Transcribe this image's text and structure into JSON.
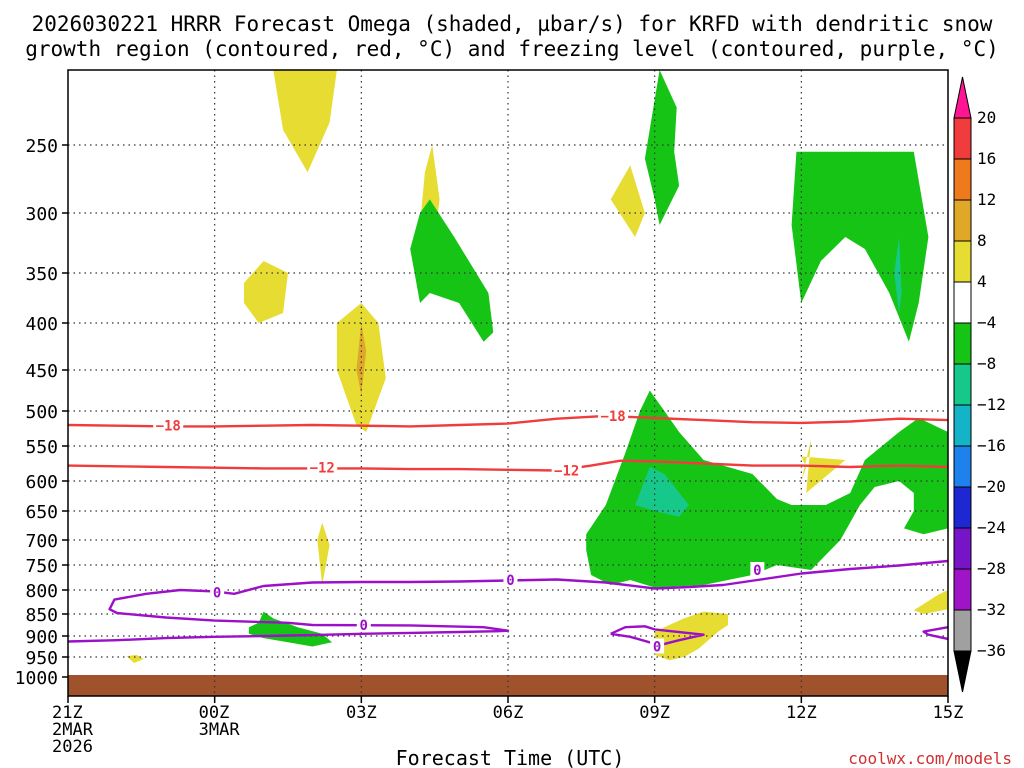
{
  "chart_data": {
    "type": "heatmap",
    "title_line1": "2026030221 HRRR Forecast Omega (shaded, µbar/s) for KRFD with dendritic snow",
    "title_line2": "growth region (contoured, red, °C) and freezing level (contoured, purple, °C)",
    "xlabel": "Forecast Time (UTC)",
    "ylabel": "",
    "credit": "coolwx.com/models",
    "x_range_hours": [
      0,
      18
    ],
    "y_range_hpa": [
      1000,
      200
    ],
    "x_ticks": [
      {
        "h": 0,
        "lines": [
          "21Z",
          "2MAR",
          "2026"
        ]
      },
      {
        "h": 3,
        "lines": [
          "00Z",
          "3MAR"
        ]
      },
      {
        "h": 6,
        "lines": [
          "03Z"
        ]
      },
      {
        "h": 9,
        "lines": [
          "06Z"
        ]
      },
      {
        "h": 12,
        "lines": [
          "09Z"
        ]
      },
      {
        "h": 15,
        "lines": [
          "12Z"
        ]
      },
      {
        "h": 18,
        "lines": [
          "15Z"
        ]
      }
    ],
    "y_ticks": [
      {
        "p": 250,
        "label": "250"
      },
      {
        "p": 300,
        "label": "300"
      },
      {
        "p": 350,
        "label": "350"
      },
      {
        "p": 400,
        "label": "400"
      },
      {
        "p": 450,
        "label": "450"
      },
      {
        "p": 500,
        "label": "500"
      },
      {
        "p": 550,
        "label": "550"
      },
      {
        "p": 600,
        "label": "600"
      },
      {
        "p": 650,
        "label": "650"
      },
      {
        "p": 700,
        "label": "700"
      },
      {
        "p": 750,
        "label": "750"
      },
      {
        "p": 800,
        "label": "800"
      },
      {
        "p": 850,
        "label": "850"
      },
      {
        "p": 900,
        "label": "900"
      },
      {
        "p": 950,
        "label": "950"
      },
      {
        "p": 1000,
        "label": "1000"
      }
    ],
    "colorbar": {
      "labels": [
        "20",
        "16",
        "12",
        "8",
        "4",
        "−4",
        "−8",
        "−12",
        "−16",
        "−20",
        "−24",
        "−28",
        "−32",
        "−36"
      ],
      "colors": [
        "#ff1493",
        "#f03c3c",
        "#ee7a1c",
        "#e0a828",
        "#e6dc32",
        "#ffffff",
        "#16c416",
        "#16c88a",
        "#14b4c8",
        "#1e82ee",
        "#1e28d2",
        "#7814c8",
        "#a014c8",
        "#a0a0a0",
        "#000000"
      ]
    },
    "contours": [
      {
        "name": "dgz-minus18",
        "value": "−18",
        "color": "#f03c3c",
        "points": [
          [
            0,
            520
          ],
          [
            1,
            521
          ],
          [
            2,
            522
          ],
          [
            3,
            522
          ],
          [
            4,
            521
          ],
          [
            5,
            520
          ],
          [
            6,
            521
          ],
          [
            7,
            522
          ],
          [
            8,
            520
          ],
          [
            9,
            518
          ],
          [
            10,
            511
          ],
          [
            11,
            507
          ],
          [
            12,
            510
          ],
          [
            13,
            513
          ],
          [
            14,
            516
          ],
          [
            15,
            517
          ],
          [
            16,
            515
          ],
          [
            17,
            511
          ],
          [
            18,
            513
          ]
        ],
        "labels": [
          {
            "h": 2.05,
            "p": 521
          },
          {
            "h": 11.15,
            "p": 507
          }
        ]
      },
      {
        "name": "dgz-minus12",
        "value": "−12",
        "color": "#f03c3c",
        "points": [
          [
            0,
            578
          ],
          [
            1,
            579
          ],
          [
            2,
            580
          ],
          [
            3,
            581
          ],
          [
            4,
            582
          ],
          [
            5,
            582
          ],
          [
            6,
            582
          ],
          [
            7,
            583
          ],
          [
            8,
            583
          ],
          [
            9,
            584
          ],
          [
            10,
            585
          ],
          [
            10.7,
            578
          ],
          [
            11.3,
            571
          ],
          [
            12,
            572
          ],
          [
            13,
            575
          ],
          [
            14,
            578
          ],
          [
            15,
            578
          ],
          [
            16,
            580
          ],
          [
            17,
            578
          ],
          [
            18,
            580
          ]
        ],
        "labels": [
          {
            "h": 5.2,
            "p": 581
          },
          {
            "h": 10.2,
            "p": 585
          }
        ]
      },
      {
        "name": "freezing-level-0",
        "value": "0",
        "color": "#9b10c8",
        "points": [
          [
            0,
            913
          ],
          [
            1,
            910
          ],
          [
            2,
            905
          ],
          [
            3,
            902
          ],
          [
            4,
            900
          ],
          [
            5,
            898
          ],
          [
            6,
            895
          ],
          [
            7,
            893
          ],
          [
            8,
            891
          ],
          [
            8.8,
            889
          ],
          [
            9,
            888
          ],
          [
            8.5,
            880
          ],
          [
            7,
            876
          ],
          [
            5,
            875
          ],
          [
            4.5,
            870
          ],
          [
            3,
            865
          ],
          [
            2,
            858
          ],
          [
            1,
            848
          ],
          [
            0.85,
            840
          ],
          [
            0.95,
            820
          ],
          [
            1.6,
            808
          ],
          [
            2.3,
            800
          ],
          [
            3,
            803
          ],
          [
            3.4,
            808
          ],
          [
            4,
            792
          ],
          [
            5,
            785
          ],
          [
            6,
            784
          ],
          [
            7,
            784
          ],
          [
            8,
            783
          ],
          [
            9,
            781
          ],
          [
            10,
            779
          ],
          [
            11,
            785
          ],
          [
            12,
            797
          ],
          [
            12.7,
            794
          ],
          [
            13.4,
            790
          ],
          [
            14.1,
            780
          ],
          [
            15,
            767
          ],
          [
            16,
            758
          ],
          [
            17,
            751
          ],
          [
            18,
            742
          ]
        ],
        "labels": [
          {
            "h": 3.05,
            "p": 805
          },
          {
            "h": 6.05,
            "p": 875
          },
          {
            "h": 9.05,
            "p": 780
          },
          {
            "h": 14.1,
            "p": 760
          }
        ]
      },
      {
        "name": "freezing-level-0-b",
        "value": "0",
        "color": "#9b10c8",
        "points": [
          [
            11.1,
            895
          ],
          [
            11.4,
            880
          ],
          [
            11.8,
            878
          ],
          [
            12,
            885
          ],
          [
            13,
            897
          ],
          [
            12.5,
            910
          ],
          [
            12.1,
            922
          ],
          [
            11.5,
            902
          ],
          [
            11.1,
            895
          ]
        ],
        "labels": [
          {
            "h": 12.05,
            "p": 925
          }
        ]
      },
      {
        "name": "freezing-level-0-c",
        "value": "0",
        "color": "#9b10c8",
        "points": [
          [
            18,
            880
          ],
          [
            17.5,
            890
          ],
          [
            17.6,
            897
          ],
          [
            18,
            907
          ]
        ],
        "labels": []
      }
    ],
    "shaded_regions": [
      {
        "name": "omega-pos-a",
        "color": "#e6dc32",
        "points": [
          [
            4.2,
            200
          ],
          [
            4.4,
            240
          ],
          [
            4.9,
            270
          ],
          [
            5.35,
            235
          ],
          [
            5.5,
            200
          ]
        ]
      },
      {
        "name": "omega-pos-b",
        "color": "#e6dc32",
        "points": [
          [
            3.6,
            360
          ],
          [
            4.0,
            340
          ],
          [
            4.5,
            350
          ],
          [
            4.4,
            390
          ],
          [
            3.9,
            400
          ],
          [
            3.6,
            380
          ]
        ]
      },
      {
        "name": "omega-pos-c",
        "color": "#e6dc32",
        "points": [
          [
            5.5,
            450
          ],
          [
            5.5,
            400
          ],
          [
            6.0,
            380
          ],
          [
            6.35,
            400
          ],
          [
            6.5,
            460
          ],
          [
            6.1,
            530
          ],
          [
            5.9,
            520
          ]
        ]
      },
      {
        "name": "omega-pos-c-core",
        "color": "#e0a828",
        "points": [
          [
            6.0,
            400
          ],
          [
            6.1,
            430
          ],
          [
            6.0,
            480
          ],
          [
            5.9,
            450
          ]
        ]
      },
      {
        "name": "omega-pos-d",
        "color": "#e6dc32",
        "points": [
          [
            7.2,
            310
          ],
          [
            7.3,
            270
          ],
          [
            7.45,
            250
          ],
          [
            7.6,
            290
          ],
          [
            7.5,
            320
          ]
        ]
      },
      {
        "name": "omega-pos-e",
        "color": "#e6dc32",
        "points": [
          [
            11.1,
            290
          ],
          [
            11.5,
            265
          ],
          [
            11.8,
            300
          ],
          [
            11.6,
            320
          ]
        ]
      },
      {
        "name": "omega-pos-f",
        "color": "#e6dc32",
        "points": [
          [
            5.1,
            700
          ],
          [
            5.2,
            670
          ],
          [
            5.35,
            710
          ],
          [
            5.2,
            790
          ]
        ]
      },
      {
        "name": "omega-pos-g",
        "color": "#e6dc32",
        "points": [
          [
            12.0,
            890
          ],
          [
            12.6,
            860
          ],
          [
            13.0,
            845
          ],
          [
            13.5,
            850
          ],
          [
            13.5,
            875
          ],
          [
            13.3,
            890
          ],
          [
            12.9,
            930
          ],
          [
            12.6,
            950
          ],
          [
            12.3,
            958
          ],
          [
            12.0,
            945
          ]
        ]
      },
      {
        "name": "omega-pos-h",
        "color": "#e6dc32",
        "points": [
          [
            15.9,
            570
          ],
          [
            15.0,
            565
          ],
          [
            15.1,
            580
          ],
          [
            15.0,
            600
          ],
          [
            15.2,
            540
          ],
          [
            15.1,
            620
          ]
        ]
      },
      {
        "name": "omega-pos-i",
        "color": "#e6dc32",
        "points": [
          [
            17.3,
            842
          ],
          [
            17.8,
            810
          ],
          [
            18,
            800
          ],
          [
            18,
            840
          ],
          [
            17.5,
            850
          ]
        ]
      },
      {
        "name": "omega-pos-j",
        "color": "#e6dc32",
        "points": [
          [
            1.2,
            948
          ],
          [
            1.4,
            945
          ],
          [
            1.55,
            955
          ],
          [
            1.35,
            965
          ]
        ]
      },
      {
        "name": "omega-neg-a",
        "color": "#16c416",
        "points": [
          [
            7.0,
            330
          ],
          [
            7.2,
            300
          ],
          [
            7.4,
            290
          ],
          [
            7.9,
            320
          ],
          [
            8.6,
            370
          ],
          [
            8.7,
            410
          ],
          [
            8.5,
            420
          ],
          [
            8.0,
            380
          ],
          [
            7.4,
            370
          ],
          [
            7.2,
            380
          ]
        ]
      },
      {
        "name": "omega-neg-b",
        "color": "#16c416",
        "points": [
          [
            11.8,
            260
          ],
          [
            12.1,
            200
          ],
          [
            12.45,
            225
          ],
          [
            12.4,
            255
          ],
          [
            12.5,
            280
          ],
          [
            12.1,
            310
          ],
          [
            12.0,
            290
          ]
        ]
      },
      {
        "name": "omega-neg-c",
        "color": "#16c416",
        "points": [
          [
            14.8,
            310
          ],
          [
            14.9,
            255
          ],
          [
            16.5,
            255
          ],
          [
            17.3,
            255
          ],
          [
            17.6,
            320
          ],
          [
            17.4,
            380
          ],
          [
            17.2,
            420
          ],
          [
            16.8,
            370
          ],
          [
            16.3,
            330
          ],
          [
            15.9,
            320
          ],
          [
            15.4,
            340
          ],
          [
            15.0,
            380
          ]
        ]
      },
      {
        "name": "omega-neg-c-core",
        "color": "#16c88a",
        "points": [
          [
            16.9,
            350
          ],
          [
            17.0,
            320
          ],
          [
            17.05,
            370
          ],
          [
            17.0,
            390
          ]
        ]
      },
      {
        "name": "omega-neg-d",
        "color": "#16c416",
        "points": [
          [
            10.6,
            690
          ],
          [
            11.0,
            640
          ],
          [
            11.4,
            560
          ],
          [
            11.7,
            500
          ],
          [
            11.9,
            475
          ],
          [
            12.2,
            500
          ],
          [
            12.5,
            530
          ],
          [
            13.0,
            570
          ],
          [
            14.0,
            590
          ],
          [
            14.5,
            630
          ],
          [
            14.8,
            640
          ],
          [
            15.2,
            640
          ],
          [
            15.5,
            640
          ],
          [
            16.0,
            620
          ],
          [
            16.3,
            570
          ],
          [
            17.0,
            530
          ],
          [
            17.4,
            510
          ],
          [
            18,
            530
          ],
          [
            18,
            680
          ],
          [
            17.5,
            690
          ],
          [
            17.1,
            680
          ],
          [
            17.3,
            650
          ],
          [
            17.3,
            620
          ],
          [
            17.0,
            600
          ],
          [
            16.5,
            610
          ],
          [
            16.2,
            640
          ],
          [
            15.8,
            700
          ],
          [
            15.2,
            760
          ],
          [
            14.5,
            750
          ],
          [
            14.0,
            770
          ],
          [
            13.0,
            790
          ],
          [
            12.0,
            795
          ],
          [
            11.5,
            780
          ],
          [
            11.1,
            790
          ],
          [
            10.7,
            770
          ],
          [
            10.6,
            720
          ]
        ]
      },
      {
        "name": "omega-neg-d-core",
        "color": "#16c88a",
        "points": [
          [
            11.6,
            640
          ],
          [
            11.9,
            580
          ],
          [
            12.2,
            590
          ],
          [
            12.7,
            640
          ],
          [
            12.5,
            660
          ],
          [
            12.0,
            650
          ]
        ]
      },
      {
        "name": "omega-neg-e",
        "color": "#16c416",
        "points": [
          [
            3.7,
            880
          ],
          [
            3.9,
            870
          ],
          [
            4.0,
            845
          ],
          [
            4.2,
            860
          ],
          [
            4.7,
            880
          ],
          [
            5.2,
            895
          ],
          [
            5.4,
            915
          ],
          [
            5.0,
            925
          ],
          [
            4.5,
            915
          ],
          [
            4.0,
            905
          ],
          [
            3.7,
            895
          ]
        ]
      }
    ]
  }
}
